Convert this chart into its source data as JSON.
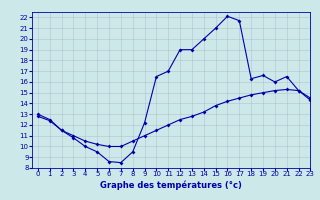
{
  "xlabel": "Graphe des températures (°c)",
  "bg_color": "#cce8e8",
  "line_color": "#0000aa",
  "grid_color": "#aabbcc",
  "xlim": [
    -0.5,
    23
  ],
  "ylim": [
    8,
    22.5
  ],
  "xticks": [
    0,
    1,
    2,
    3,
    4,
    5,
    6,
    7,
    8,
    9,
    10,
    11,
    12,
    13,
    14,
    15,
    16,
    17,
    18,
    19,
    20,
    21,
    22,
    23
  ],
  "yticks": [
    8,
    9,
    10,
    11,
    12,
    13,
    14,
    15,
    16,
    17,
    18,
    19,
    20,
    21,
    22
  ],
  "series1_x": [
    0,
    1,
    2,
    3,
    4,
    5,
    6,
    7,
    8,
    9,
    10,
    11,
    12,
    13,
    14,
    15,
    16,
    17,
    18,
    19,
    20,
    21,
    22,
    23
  ],
  "series1_y": [
    13.0,
    12.5,
    11.5,
    10.8,
    10.0,
    9.5,
    8.6,
    8.5,
    9.5,
    12.2,
    16.5,
    17.0,
    19.0,
    19.0,
    20.0,
    21.0,
    22.1,
    21.7,
    16.3,
    16.6,
    16.0,
    16.5,
    15.2,
    14.3
  ],
  "series2_x": [
    0,
    1,
    2,
    3,
    4,
    5,
    6,
    7,
    8,
    9,
    10,
    11,
    12,
    13,
    14,
    15,
    16,
    17,
    18,
    19,
    20,
    21,
    22,
    23
  ],
  "series2_y": [
    12.8,
    12.4,
    11.5,
    11.0,
    10.5,
    10.2,
    10.0,
    10.0,
    10.5,
    11.0,
    11.5,
    12.0,
    12.5,
    12.8,
    13.2,
    13.8,
    14.2,
    14.5,
    14.8,
    15.0,
    15.2,
    15.3,
    15.2,
    14.5
  ],
  "xlabel_fontsize": 6,
  "tick_fontsize": 5,
  "linewidth": 0.8,
  "markersize": 2.0
}
